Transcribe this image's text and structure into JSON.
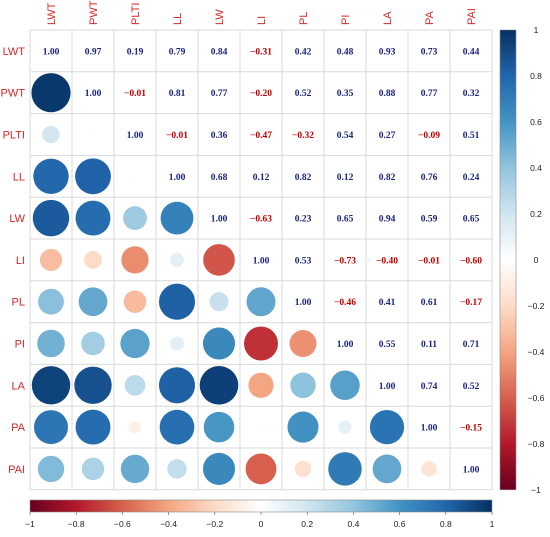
{
  "chart_data": {
    "type": "heatmap",
    "title": "",
    "variables": [
      "LWT",
      "PWT",
      "PLTI",
      "LL",
      "LW",
      "LI",
      "PL",
      "PI",
      "LA",
      "PA",
      "PAI"
    ],
    "matrix": [
      [
        1.0,
        0.97,
        0.19,
        0.79,
        0.84,
        -0.31,
        0.42,
        0.48,
        0.93,
        0.73,
        0.44
      ],
      [
        0.97,
        1.0,
        -0.01,
        0.81,
        0.77,
        -0.2,
        0.52,
        0.35,
        0.88,
        0.77,
        0.32
      ],
      [
        0.19,
        -0.01,
        1.0,
        -0.01,
        0.36,
        -0.47,
        -0.32,
        0.54,
        0.27,
        -0.09,
        0.51
      ],
      [
        0.79,
        0.81,
        -0.01,
        1.0,
        0.68,
        0.12,
        0.82,
        0.12,
        0.82,
        0.76,
        0.24
      ],
      [
        0.84,
        0.77,
        0.36,
        0.68,
        1.0,
        -0.63,
        0.23,
        0.65,
        0.94,
        0.59,
        0.65
      ],
      [
        -0.31,
        -0.2,
        -0.47,
        0.12,
        -0.63,
        1.0,
        0.53,
        -0.73,
        -0.4,
        -0.01,
        -0.6
      ],
      [
        0.42,
        0.52,
        -0.32,
        0.82,
        0.23,
        0.53,
        1.0,
        -0.46,
        0.41,
        0.61,
        -0.17
      ],
      [
        0.48,
        0.35,
        0.54,
        0.12,
        0.65,
        -0.73,
        -0.46,
        1.0,
        0.55,
        0.11,
        0.71
      ],
      [
        0.93,
        0.88,
        0.27,
        0.82,
        0.94,
        -0.4,
        0.41,
        0.55,
        1.0,
        0.74,
        0.52
      ],
      [
        0.73,
        0.77,
        -0.09,
        0.76,
        0.59,
        -0.01,
        0.61,
        0.11,
        0.74,
        1.0,
        -0.15
      ],
      [
        0.44,
        0.32,
        0.51,
        0.24,
        0.65,
        -0.6,
        -0.17,
        0.71,
        0.52,
        -0.15,
        1.0
      ]
    ],
    "upper_triangle": "number",
    "lower_triangle": "circle",
    "colorbar": {
      "range": [
        -1,
        1
      ],
      "ticks": [
        "-1",
        "-0.8",
        "-0.6",
        "-0.4",
        "-0.2",
        "0",
        "0.2",
        "0.4",
        "0.6",
        "0.8",
        "1"
      ],
      "colors": [
        "#67001f",
        "#b2182b",
        "#d6604d",
        "#f4a582",
        "#fddbc7",
        "#ffffff",
        "#d1e5f0",
        "#92c5de",
        "#4393c3",
        "#2166ac",
        "#053061"
      ]
    },
    "label_color": "#d62728",
    "negative_text_color": "#c00000",
    "positive_text_color": "#1a237e",
    "grid": true
  }
}
